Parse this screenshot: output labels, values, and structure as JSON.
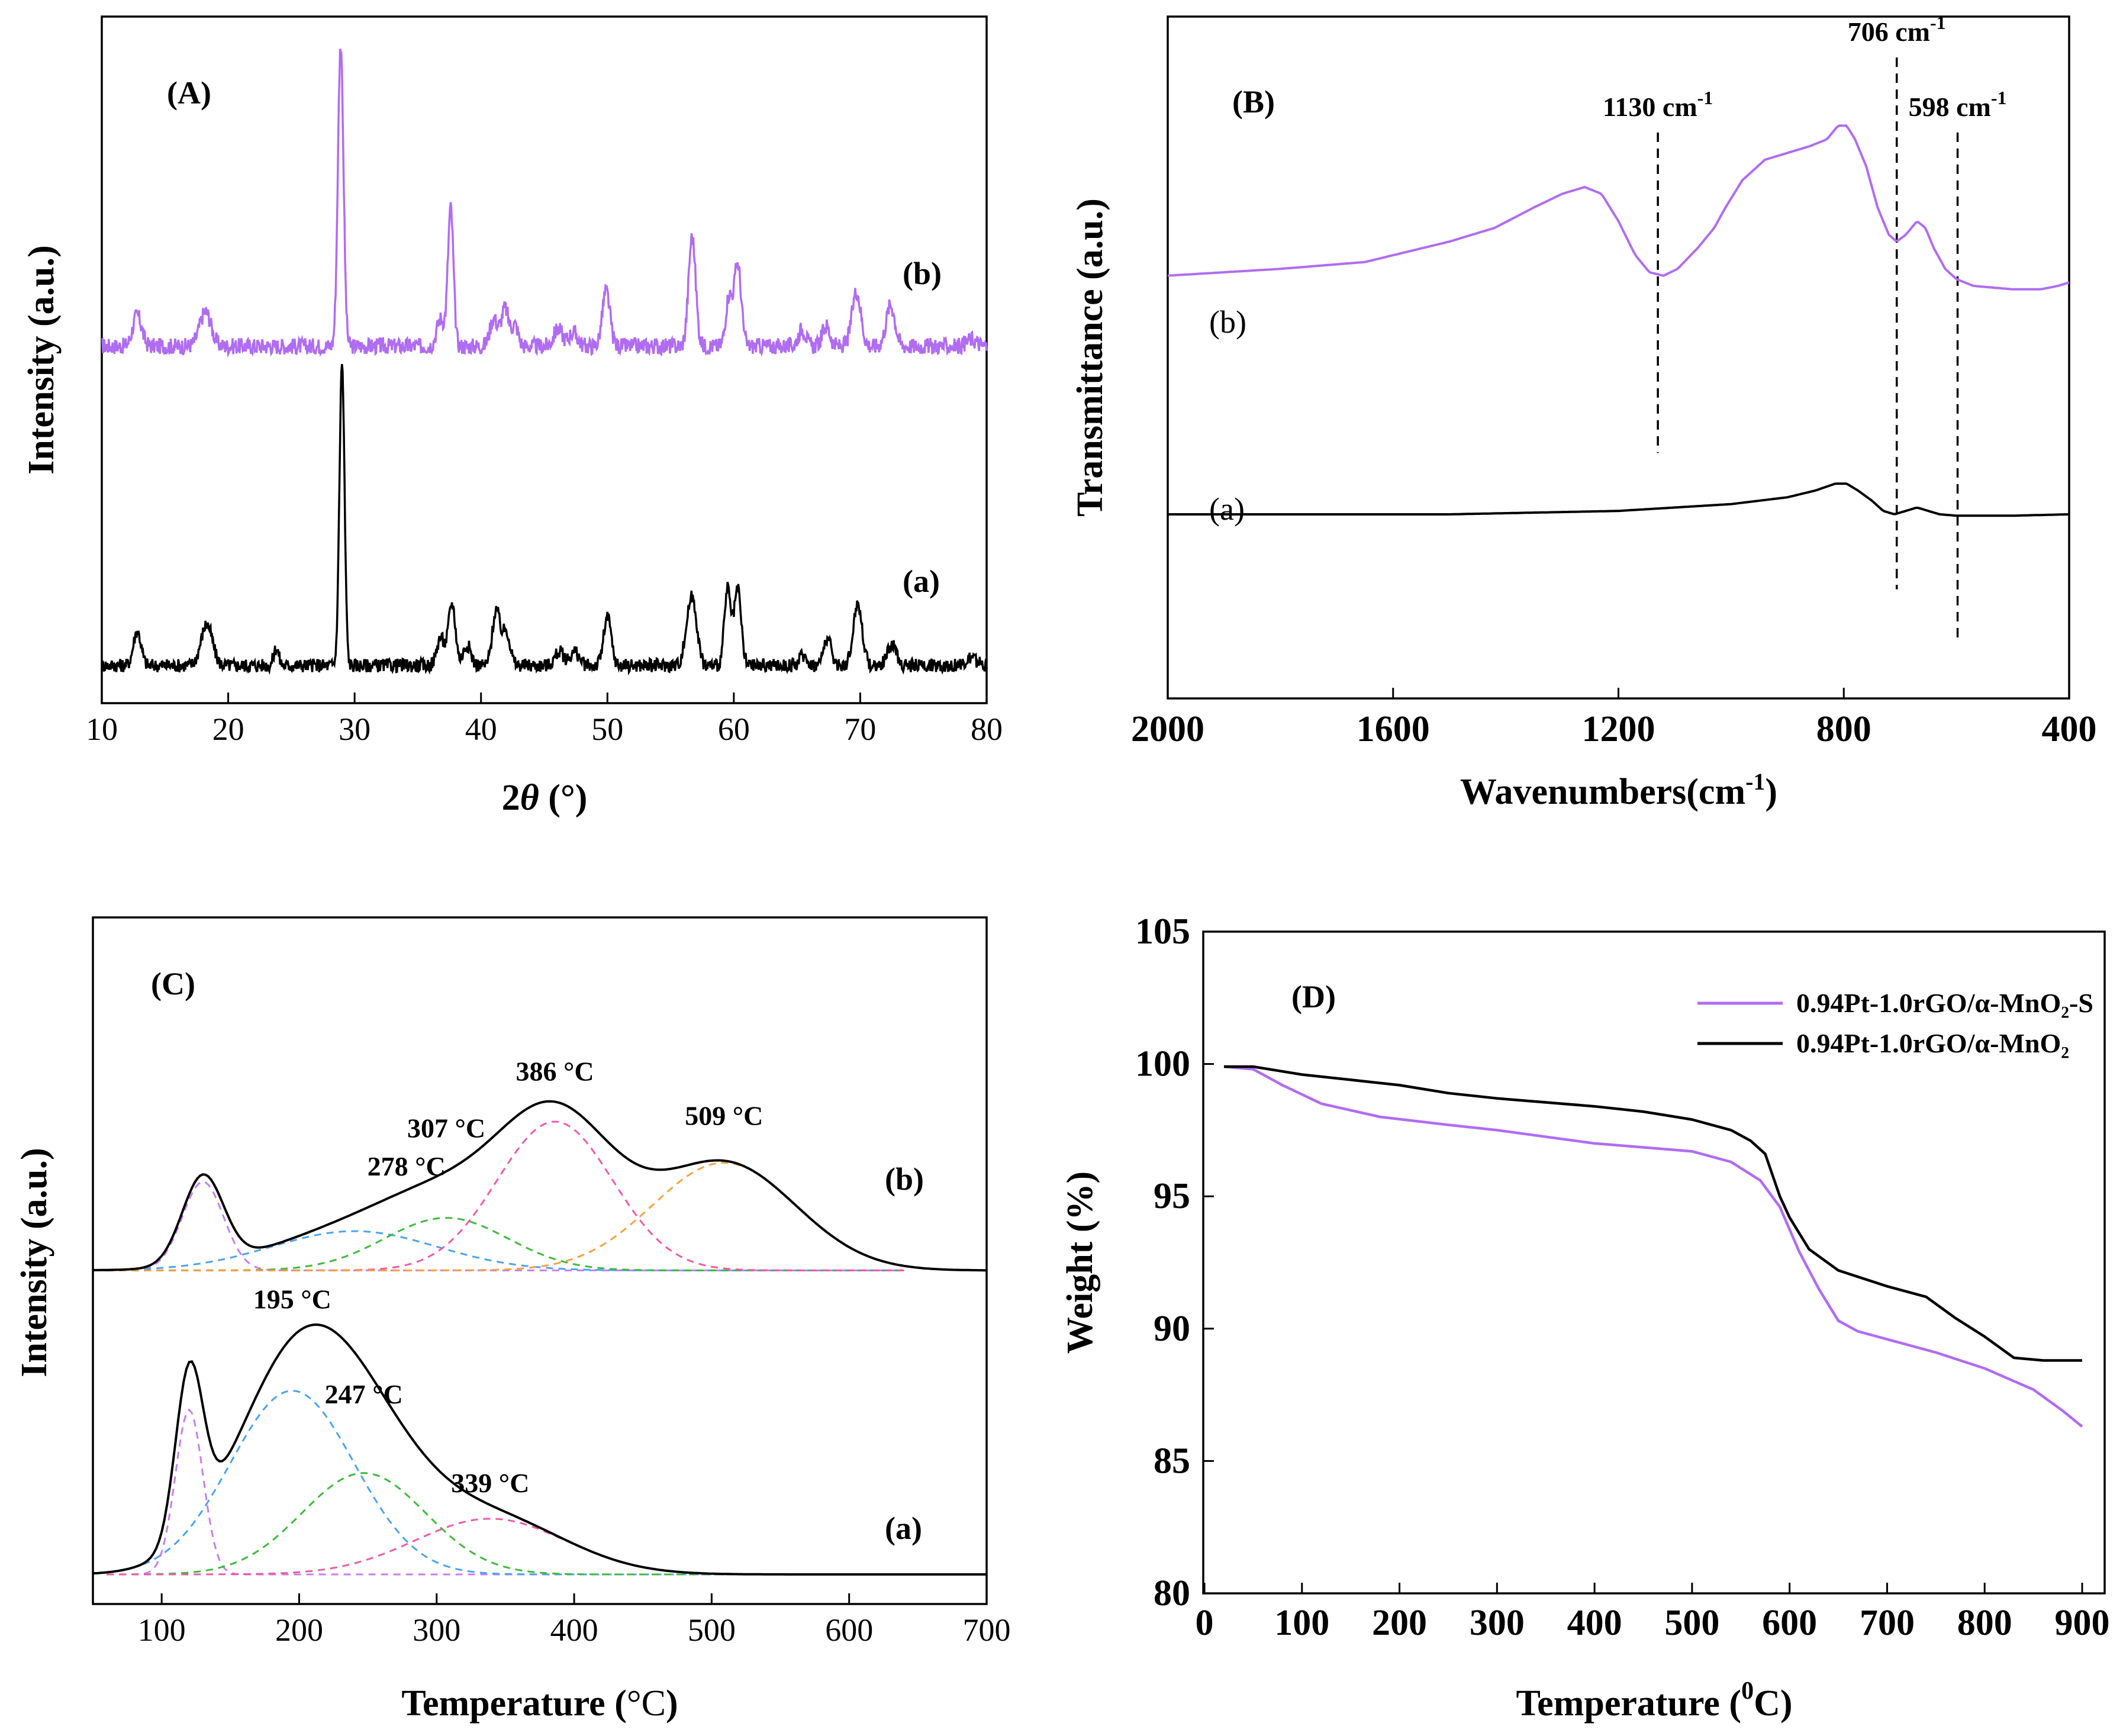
{
  "colors": {
    "purple": "#b06cf2",
    "black": "#000000",
    "blue": "#4aa3f0",
    "green": "#3cba3c",
    "pink": "#ee5aa8",
    "orange": "#f4a23c",
    "violet": "#c77ef0"
  },
  "chart_data": [
    {
      "panel": "(A)",
      "type": "line",
      "title": "",
      "xlabel_prefix": "2",
      "xlabel_symbol": "θ",
      "xlabel_suffix": " (°)",
      "ylabel": "Intensity (a.u.)",
      "xlim": [
        10,
        80
      ],
      "xticks": [
        "10",
        "20",
        "30",
        "40",
        "50",
        "60",
        "70",
        "80"
      ],
      "series": [
        {
          "name": "(b)",
          "color": "purple",
          "baseline": 0.52,
          "peaks": [
            [
              12.8,
              0.045,
              0.35
            ],
            [
              18.2,
              0.05,
              0.45
            ],
            [
              28.9,
              0.44,
              0.22
            ],
            [
              36.8,
              0.04,
              0.3
            ],
            [
              37.6,
              0.2,
              0.22
            ],
            [
              41.0,
              0.04,
              0.3
            ],
            [
              41.9,
              0.055,
              0.3
            ],
            [
              42.7,
              0.03,
              0.25
            ],
            [
              46.1,
              0.025,
              0.35
            ],
            [
              47.3,
              0.02,
              0.35
            ],
            [
              49.9,
              0.08,
              0.3
            ],
            [
              56.7,
              0.16,
              0.28
            ],
            [
              59.6,
              0.07,
              0.25
            ],
            [
              60.3,
              0.12,
              0.28
            ],
            [
              65.4,
              0.025,
              0.3
            ],
            [
              67.3,
              0.03,
              0.3
            ],
            [
              69.7,
              0.08,
              0.35
            ],
            [
              72.4,
              0.06,
              0.35
            ],
            [
              78.8,
              0.01,
              0.4
            ]
          ],
          "noise": 0.012
        },
        {
          "name": "(a)",
          "color": "black",
          "baseline": 0.055,
          "peaks": [
            [
              12.8,
              0.05,
              0.3
            ],
            [
              18.3,
              0.06,
              0.45
            ],
            [
              23.8,
              0.025,
              0.2
            ],
            [
              29.0,
              0.44,
              0.2
            ],
            [
              36.8,
              0.04,
              0.3
            ],
            [
              37.7,
              0.09,
              0.28
            ],
            [
              38.9,
              0.03,
              0.3
            ],
            [
              41.2,
              0.08,
              0.3
            ],
            [
              42.0,
              0.05,
              0.3
            ],
            [
              46.2,
              0.02,
              0.35
            ],
            [
              47.4,
              0.02,
              0.35
            ],
            [
              50.0,
              0.07,
              0.3
            ],
            [
              56.5,
              0.07,
              0.35
            ],
            [
              56.9,
              0.05,
              0.3
            ],
            [
              59.5,
              0.11,
              0.25
            ],
            [
              60.3,
              0.11,
              0.28
            ],
            [
              65.5,
              0.015,
              0.3
            ],
            [
              67.4,
              0.04,
              0.3
            ],
            [
              69.8,
              0.09,
              0.35
            ],
            [
              72.5,
              0.03,
              0.35
            ],
            [
              78.8,
              0.01,
              0.4
            ]
          ],
          "noise": 0.01
        }
      ],
      "curve_labels": [
        "(b)",
        "(a)"
      ]
    },
    {
      "panel": "(B)",
      "type": "line",
      "xlabel": "Wavenumbers(cm",
      "xlabel_sup": "-1",
      "xlabel_end": ")",
      "ylabel": "Transmittance (a.u.)",
      "xlim": [
        2000,
        400
      ],
      "xticks": [
        "2000",
        "1600",
        "1200",
        "800",
        "400"
      ],
      "series": [
        {
          "name": "(b)",
          "color": "purple",
          "points": [
            [
              2000,
              0.62
            ],
            [
              1800,
              0.63
            ],
            [
              1650,
              0.64
            ],
            [
              1500,
              0.67
            ],
            [
              1420,
              0.69
            ],
            [
              1350,
              0.72
            ],
            [
              1300,
              0.74
            ],
            [
              1260,
              0.75
            ],
            [
              1230,
              0.74
            ],
            [
              1200,
              0.7
            ],
            [
              1170,
              0.65
            ],
            [
              1145,
              0.625
            ],
            [
              1120,
              0.62
            ],
            [
              1095,
              0.63
            ],
            [
              1060,
              0.66
            ],
            [
              1030,
              0.69
            ],
            [
              1010,
              0.72
            ],
            [
              980,
              0.76
            ],
            [
              940,
              0.79
            ],
            [
              900,
              0.8
            ],
            [
              860,
              0.81
            ],
            [
              830,
              0.82
            ],
            [
              810,
              0.84
            ],
            [
              795,
              0.84
            ],
            [
              780,
              0.82
            ],
            [
              760,
              0.78
            ],
            [
              740,
              0.72
            ],
            [
              720,
              0.68
            ],
            [
              706,
              0.67
            ],
            [
              690,
              0.68
            ],
            [
              670,
              0.7
            ],
            [
              655,
              0.69
            ],
            [
              640,
              0.66
            ],
            [
              620,
              0.63
            ],
            [
              600,
              0.615
            ],
            [
              570,
              0.605
            ],
            [
              500,
              0.6
            ],
            [
              450,
              0.6
            ],
            [
              420,
              0.605
            ],
            [
              400,
              0.61
            ]
          ]
        },
        {
          "name": "(a)",
          "color": "black",
          "points": [
            [
              2000,
              0.27
            ],
            [
              1500,
              0.27
            ],
            [
              1200,
              0.275
            ],
            [
              1000,
              0.285
            ],
            [
              900,
              0.295
            ],
            [
              850,
              0.305
            ],
            [
              815,
              0.315
            ],
            [
              795,
              0.315
            ],
            [
              775,
              0.305
            ],
            [
              750,
              0.29
            ],
            [
              730,
              0.275
            ],
            [
              710,
              0.27
            ],
            [
              690,
              0.275
            ],
            [
              670,
              0.28
            ],
            [
              650,
              0.275
            ],
            [
              630,
              0.27
            ],
            [
              600,
              0.268
            ],
            [
              500,
              0.268
            ],
            [
              400,
              0.27
            ]
          ]
        }
      ],
      "curve_labels": [
        "(b)",
        "(a)"
      ],
      "annotations": [
        {
          "x": 1130,
          "label": "1130 cm",
          "sup": "-1",
          "y_top": 0.83,
          "y_bot": 0.36
        },
        {
          "x": 706,
          "label": "706 cm",
          "sup": "-1",
          "y_top": 0.94,
          "y_bot": 0.16
        },
        {
          "x": 598,
          "label": "598 cm",
          "sup": "-1",
          "y_top": 0.83,
          "y_bot": 0.08
        }
      ]
    },
    {
      "panel": "(C)",
      "type": "line",
      "xlabel": "Temperature (",
      "xlabel_unit": "°C",
      "xlabel_end": ")",
      "ylabel": "Intensity (a.u.)",
      "xlim": [
        50,
        700
      ],
      "xticks": [
        "100",
        "200",
        "300",
        "400",
        "500",
        "600",
        "700"
      ],
      "envelopes": [
        {
          "name": "(b)",
          "baseline": 0.48,
          "components": [
            {
              "center": 130,
              "amp": 0.14,
              "width": 15,
              "color": "violet"
            },
            {
              "center": 240,
              "amp": 0.062,
              "width": 60,
              "color": "blue"
            },
            {
              "center": 307,
              "amp": 0.083,
              "width": 45,
              "color": "green"
            },
            {
              "center": 386,
              "amp": 0.235,
              "width": 42,
              "color": "pink"
            },
            {
              "center": 509,
              "amp": 0.17,
              "width": 52,
              "color": "orange"
            }
          ]
        },
        {
          "name": "(a)",
          "baseline": 0.0,
          "components": [
            {
              "center": 120,
              "amp": 0.26,
              "width": 10,
              "color": "violet"
            },
            {
              "center": 195,
              "amp": 0.29,
              "width": 45,
              "color": "blue"
            },
            {
              "center": 247,
              "amp": 0.16,
              "width": 45,
              "color": "green"
            },
            {
              "center": 339,
              "amp": 0.088,
              "width": 55,
              "color": "pink"
            }
          ]
        }
      ],
      "peak_labels": [
        {
          "x": 278,
          "text": "278 °C",
          "y": 0.63
        },
        {
          "x": 307,
          "text": "307 °C",
          "y": 0.69
        },
        {
          "x": 386,
          "text": "386 °C",
          "y": 0.78
        },
        {
          "x": 509,
          "text": "509 °C",
          "y": 0.71
        },
        {
          "x": 195,
          "text": "195 °C",
          "y": 0.42
        },
        {
          "x": 247,
          "text": "247 °C",
          "y": 0.27
        },
        {
          "x": 339,
          "text": "339 °C",
          "y": 0.13
        }
      ],
      "curve_labels": [
        "(b)",
        "(a)"
      ]
    },
    {
      "panel": "(D)",
      "type": "line",
      "xlabel": "Temperature (",
      "xlabel_sup": "0",
      "xlabel_end": "C)",
      "ylabel": "Weight (%)",
      "xlim": [
        0,
        930
      ],
      "ylim": [
        80,
        105
      ],
      "xticks": [
        "0",
        "100",
        "200",
        "300",
        "400",
        "500",
        "600",
        "700",
        "800",
        "900"
      ],
      "yticks": [
        "80",
        "85",
        "90",
        "95",
        "100",
        "105"
      ],
      "series": [
        {
          "name": "0.94Pt-1.0rGO/α-MnO₂-S",
          "color": "purple",
          "points": [
            [
              20,
              99.9
            ],
            [
              50,
              99.8
            ],
            [
              80,
              99.2
            ],
            [
              120,
              98.5
            ],
            [
              180,
              98.0
            ],
            [
              250,
              97.7
            ],
            [
              300,
              97.5
            ],
            [
              400,
              97.0
            ],
            [
              500,
              96.7
            ],
            [
              540,
              96.3
            ],
            [
              570,
              95.6
            ],
            [
              590,
              94.6
            ],
            [
              610,
              92.9
            ],
            [
              630,
              91.5
            ],
            [
              650,
              90.3
            ],
            [
              670,
              89.9
            ],
            [
              700,
              89.6
            ],
            [
              750,
              89.1
            ],
            [
              800,
              88.5
            ],
            [
              850,
              87.7
            ],
            [
              880,
              86.9
            ],
            [
              900,
              86.3
            ]
          ]
        },
        {
          "name": "0.94Pt-1.0rGO/α-MnO₂",
          "color": "black",
          "points": [
            [
              20,
              99.9
            ],
            [
              50,
              99.9
            ],
            [
              100,
              99.6
            ],
            [
              150,
              99.4
            ],
            [
              200,
              99.2
            ],
            [
              250,
              98.9
            ],
            [
              300,
              98.7
            ],
            [
              400,
              98.4
            ],
            [
              450,
              98.2
            ],
            [
              500,
              97.9
            ],
            [
              540,
              97.5
            ],
            [
              560,
              97.1
            ],
            [
              575,
              96.6
            ],
            [
              590,
              95.0
            ],
            [
              600,
              94.2
            ],
            [
              620,
              93.0
            ],
            [
              650,
              92.2
            ],
            [
              700,
              91.6
            ],
            [
              740,
              91.2
            ],
            [
              770,
              90.4
            ],
            [
              800,
              89.7
            ],
            [
              830,
              88.9
            ],
            [
              860,
              88.8
            ],
            [
              900,
              88.8
            ]
          ]
        }
      ],
      "legend_location": "top-right"
    }
  ]
}
